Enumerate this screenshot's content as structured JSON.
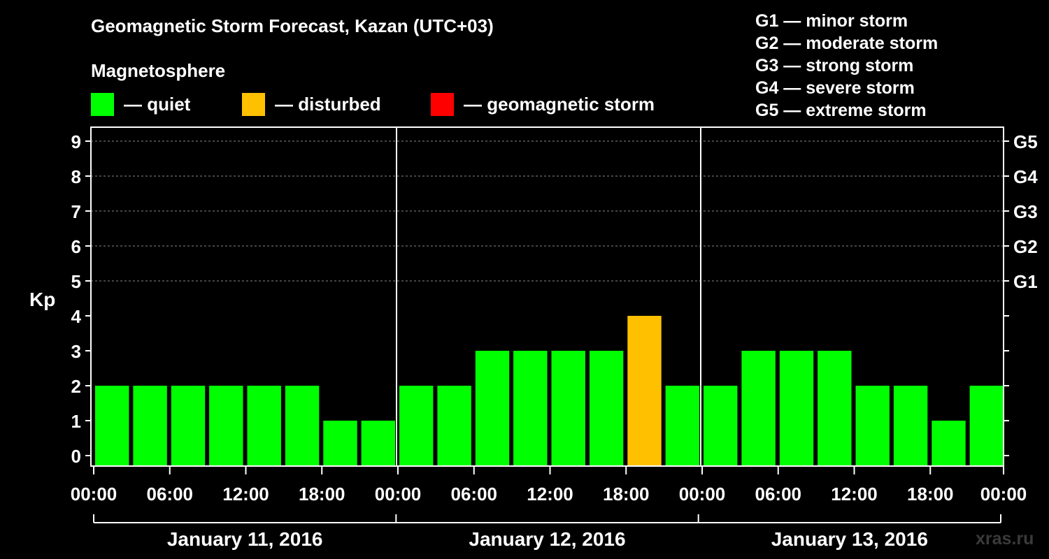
{
  "chart_data": {
    "type": "bar",
    "title": "Geomagnetic Storm Forecast, Kazan (UTC+03)",
    "subtitle": "Magnetosphere",
    "ylabel": "Kp",
    "ylim": [
      0,
      9
    ],
    "yticks": [
      "0",
      "1",
      "2",
      "3",
      "4",
      "5",
      "6",
      "7",
      "8",
      "9"
    ],
    "right_ticks": [
      {
        "kp": 5,
        "label": "G1"
      },
      {
        "kp": 6,
        "label": "G2"
      },
      {
        "kp": 7,
        "label": "G3"
      },
      {
        "kp": 8,
        "label": "G4"
      },
      {
        "kp": 9,
        "label": "G5"
      }
    ],
    "xticks": [
      "00:00",
      "06:00",
      "12:00",
      "18:00",
      "00:00",
      "06:00",
      "12:00",
      "18:00",
      "00:00",
      "06:00",
      "12:00",
      "18:00",
      "00:00"
    ],
    "days": [
      "January 11, 2016",
      "January 12, 2016",
      "January 13, 2016"
    ],
    "bars_per_day": 8,
    "values": [
      2,
      2,
      2,
      2,
      2,
      2,
      1,
      1,
      2,
      2,
      3,
      3,
      3,
      3,
      4,
      2,
      2,
      3,
      3,
      3,
      2,
      2,
      1,
      2
    ],
    "legend": [
      {
        "label": "— quiet",
        "color": "#00ff00"
      },
      {
        "label": "— disturbed",
        "color": "#ffc000"
      },
      {
        "label": "— geomagnetic storm",
        "color": "#ff0000"
      }
    ],
    "storm_levels": [
      "G1 — minor storm",
      "G2 — moderate storm",
      "G3 — strong storm",
      "G4 — severe storm",
      "G5 — extreme storm"
    ],
    "grid": "dashed horizontal at Kp 5-9"
  },
  "colors": {
    "quiet": "#00ff00",
    "disturbed": "#ffc000",
    "storm": "#ff0000",
    "background": "#000000",
    "axis": "#ffffff"
  },
  "watermark": "xras.ru"
}
